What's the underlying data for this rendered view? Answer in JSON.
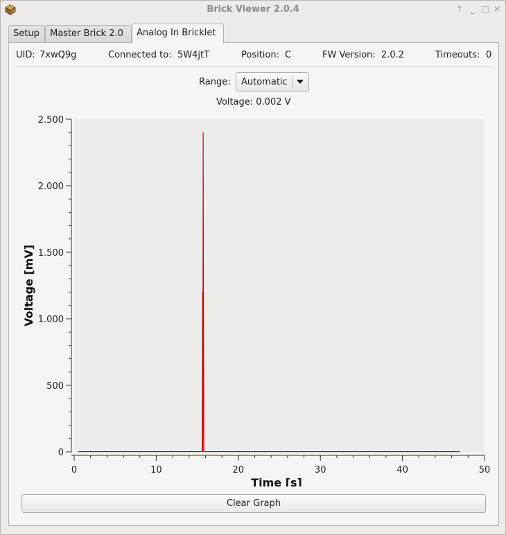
{
  "window": {
    "title": "Brick Viewer 2.0.4",
    "buttons": [
      "up-arrow-icon",
      "minimize-icon",
      "maximize-icon",
      "close-icon"
    ]
  },
  "tabs": [
    {
      "label": "Setup",
      "active": false
    },
    {
      "label": "Master Brick 2.0",
      "active": false
    },
    {
      "label": "Analog In Bricklet",
      "active": true
    }
  ],
  "info": {
    "uid_label": "UID:",
    "uid": "7xwQ9g",
    "connected_label": "Connected to:",
    "connected": "5W4jtT",
    "position_label": "Position:",
    "position": "C",
    "fw_label": "FW Version:",
    "fw": "2.0.2",
    "timeouts_label": "Timeouts:",
    "timeouts": "0"
  },
  "range": {
    "label": "Range:",
    "value": "Automatic"
  },
  "voltage_readout": "Voltage: 0.002 V",
  "clear_button": "Clear Graph",
  "colors": {
    "plot_bg": "#ececeb",
    "series": "#d00000"
  },
  "chart_data": {
    "type": "line",
    "xlabel": "Time [s]",
    "ylabel": "Voltage [mV]",
    "xlim": [
      0,
      50
    ],
    "ylim": [
      0,
      2500
    ],
    "xticks": [
      0,
      10,
      20,
      30,
      40,
      50
    ],
    "xtick_labels": [
      "0",
      "10",
      "20",
      "30",
      "40",
      "50"
    ],
    "yticks": [
      0,
      500,
      1000,
      1500,
      2000,
      2500
    ],
    "ytick_labels": [
      "0",
      "500",
      "1.000",
      "1.500",
      "2.000",
      "2.500"
    ],
    "grid": false,
    "series": [
      {
        "x": [
          0.5,
          15.6,
          15.65,
          15.68,
          15.72,
          15.75,
          15.8,
          15.85,
          47.0
        ],
        "y": [
          2,
          2,
          1200,
          2,
          2400,
          1200,
          2,
          2,
          2
        ]
      }
    ]
  }
}
